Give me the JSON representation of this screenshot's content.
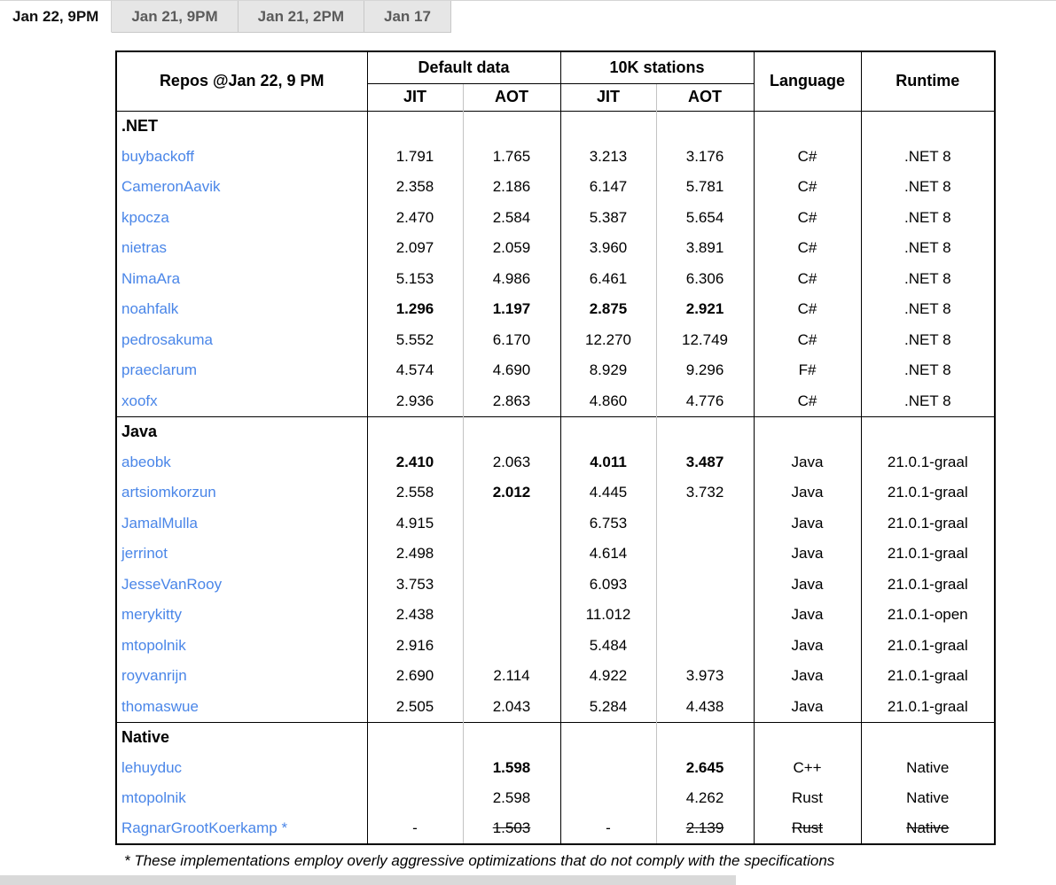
{
  "tabs": [
    {
      "label": "Jan 22, 9PM",
      "active": true
    },
    {
      "label": "Jan 21, 9PM",
      "active": false
    },
    {
      "label": "Jan 21, 2PM",
      "active": false
    },
    {
      "label": "Jan 17",
      "active": false
    }
  ],
  "table": {
    "header": {
      "repos": "Repos @Jan 22, 9 PM",
      "default_data": "Default data",
      "tenk_stations": "10K stations",
      "jit": "JIT",
      "aot": "AOT",
      "language": "Language",
      "runtime": "Runtime"
    },
    "columns": [
      "default_jit",
      "default_aot",
      "10k_jit",
      "10k_aot",
      "language",
      "runtime"
    ],
    "sections": [
      {
        "name": ".NET",
        "rows": [
          {
            "repo": "buybackoff",
            "cells": [
              {
                "v": "1.791"
              },
              {
                "v": "1.765"
              },
              {
                "v": "3.213"
              },
              {
                "v": "3.176"
              },
              {
                "v": "C#"
              },
              {
                "v": ".NET 8"
              }
            ]
          },
          {
            "repo": "CameronAavik",
            "cells": [
              {
                "v": "2.358"
              },
              {
                "v": "2.186"
              },
              {
                "v": "6.147"
              },
              {
                "v": "5.781"
              },
              {
                "v": "C#"
              },
              {
                "v": ".NET 8"
              }
            ]
          },
          {
            "repo": "kpocza",
            "cells": [
              {
                "v": "2.470"
              },
              {
                "v": "2.584"
              },
              {
                "v": "5.387"
              },
              {
                "v": "5.654"
              },
              {
                "v": "C#"
              },
              {
                "v": ".NET 8"
              }
            ]
          },
          {
            "repo": "nietras",
            "cells": [
              {
                "v": "2.097"
              },
              {
                "v": "2.059"
              },
              {
                "v": "3.960"
              },
              {
                "v": "3.891"
              },
              {
                "v": "C#"
              },
              {
                "v": ".NET 8"
              }
            ]
          },
          {
            "repo": "NimaAra",
            "cells": [
              {
                "v": "5.153"
              },
              {
                "v": "4.986"
              },
              {
                "v": "6.461"
              },
              {
                "v": "6.306"
              },
              {
                "v": "C#"
              },
              {
                "v": ".NET 8"
              }
            ]
          },
          {
            "repo": "noahfalk",
            "cells": [
              {
                "v": "1.296",
                "b": true
              },
              {
                "v": "1.197",
                "b": true
              },
              {
                "v": "2.875",
                "b": true
              },
              {
                "v": "2.921",
                "b": true
              },
              {
                "v": "C#"
              },
              {
                "v": ".NET 8"
              }
            ]
          },
          {
            "repo": "pedrosakuma",
            "cells": [
              {
                "v": "5.552"
              },
              {
                "v": "6.170"
              },
              {
                "v": "12.270"
              },
              {
                "v": "12.749"
              },
              {
                "v": "C#"
              },
              {
                "v": ".NET 8"
              }
            ]
          },
          {
            "repo": "praeclarum",
            "cells": [
              {
                "v": "4.574"
              },
              {
                "v": "4.690"
              },
              {
                "v": "8.929"
              },
              {
                "v": "9.296"
              },
              {
                "v": "F#"
              },
              {
                "v": ".NET 8"
              }
            ]
          },
          {
            "repo": "xoofx",
            "cells": [
              {
                "v": "2.936"
              },
              {
                "v": "2.863"
              },
              {
                "v": "4.860"
              },
              {
                "v": "4.776"
              },
              {
                "v": "C#"
              },
              {
                "v": ".NET 8"
              }
            ]
          }
        ]
      },
      {
        "name": "Java",
        "rows": [
          {
            "repo": "abeobk",
            "cells": [
              {
                "v": "2.410",
                "b": true
              },
              {
                "v": "2.063"
              },
              {
                "v": "4.011",
                "b": true
              },
              {
                "v": "3.487",
                "b": true
              },
              {
                "v": "Java"
              },
              {
                "v": "21.0.1-graal"
              }
            ]
          },
          {
            "repo": "artsiomkorzun",
            "cells": [
              {
                "v": "2.558"
              },
              {
                "v": "2.012",
                "b": true
              },
              {
                "v": "4.445"
              },
              {
                "v": "3.732"
              },
              {
                "v": "Java"
              },
              {
                "v": "21.0.1-graal"
              }
            ]
          },
          {
            "repo": "JamalMulla",
            "cells": [
              {
                "v": "4.915"
              },
              {
                "v": ""
              },
              {
                "v": "6.753"
              },
              {
                "v": ""
              },
              {
                "v": "Java"
              },
              {
                "v": "21.0.1-graal"
              }
            ]
          },
          {
            "repo": "jerrinot",
            "cells": [
              {
                "v": "2.498"
              },
              {
                "v": ""
              },
              {
                "v": "4.614"
              },
              {
                "v": ""
              },
              {
                "v": "Java"
              },
              {
                "v": "21.0.1-graal"
              }
            ]
          },
          {
            "repo": "JesseVanRooy",
            "cells": [
              {
                "v": "3.753"
              },
              {
                "v": ""
              },
              {
                "v": "6.093"
              },
              {
                "v": ""
              },
              {
                "v": "Java"
              },
              {
                "v": "21.0.1-graal"
              }
            ]
          },
          {
            "repo": "merykitty",
            "cells": [
              {
                "v": "2.438"
              },
              {
                "v": ""
              },
              {
                "v": "11.012"
              },
              {
                "v": ""
              },
              {
                "v": "Java"
              },
              {
                "v": "21.0.1-open"
              }
            ]
          },
          {
            "repo": "mtopolnik",
            "cells": [
              {
                "v": "2.916"
              },
              {
                "v": ""
              },
              {
                "v": "5.484"
              },
              {
                "v": ""
              },
              {
                "v": "Java"
              },
              {
                "v": "21.0.1-graal"
              }
            ]
          },
          {
            "repo": "royvanrijn",
            "cells": [
              {
                "v": "2.690"
              },
              {
                "v": "2.114"
              },
              {
                "v": "4.922"
              },
              {
                "v": "3.973"
              },
              {
                "v": "Java"
              },
              {
                "v": "21.0.1-graal"
              }
            ]
          },
          {
            "repo": "thomaswue",
            "cells": [
              {
                "v": "2.505"
              },
              {
                "v": "2.043"
              },
              {
                "v": "5.284"
              },
              {
                "v": "4.438"
              },
              {
                "v": "Java"
              },
              {
                "v": "21.0.1-graal"
              }
            ]
          }
        ]
      },
      {
        "name": "Native",
        "rows": [
          {
            "repo": "lehuyduc",
            "cells": [
              {
                "v": ""
              },
              {
                "v": "1.598",
                "b": true
              },
              {
                "v": ""
              },
              {
                "v": "2.645",
                "b": true
              },
              {
                "v": "C++"
              },
              {
                "v": "Native"
              }
            ]
          },
          {
            "repo": "mtopolnik",
            "cells": [
              {
                "v": ""
              },
              {
                "v": "2.598"
              },
              {
                "v": ""
              },
              {
                "v": "4.262"
              },
              {
                "v": "Rust"
              },
              {
                "v": "Native"
              }
            ]
          },
          {
            "repo": "RagnarGrootKoerkamp *",
            "cells": [
              {
                "v": "-"
              },
              {
                "v": "1.503",
                "s": true
              },
              {
                "v": "-"
              },
              {
                "v": "2.139",
                "s": true
              },
              {
                "v": "Rust",
                "s": true
              },
              {
                "v": "Native",
                "s": true
              }
            ]
          }
        ]
      }
    ]
  },
  "footnote": "* These implementations employ overly aggressive optimizations that do not comply with the specifications"
}
